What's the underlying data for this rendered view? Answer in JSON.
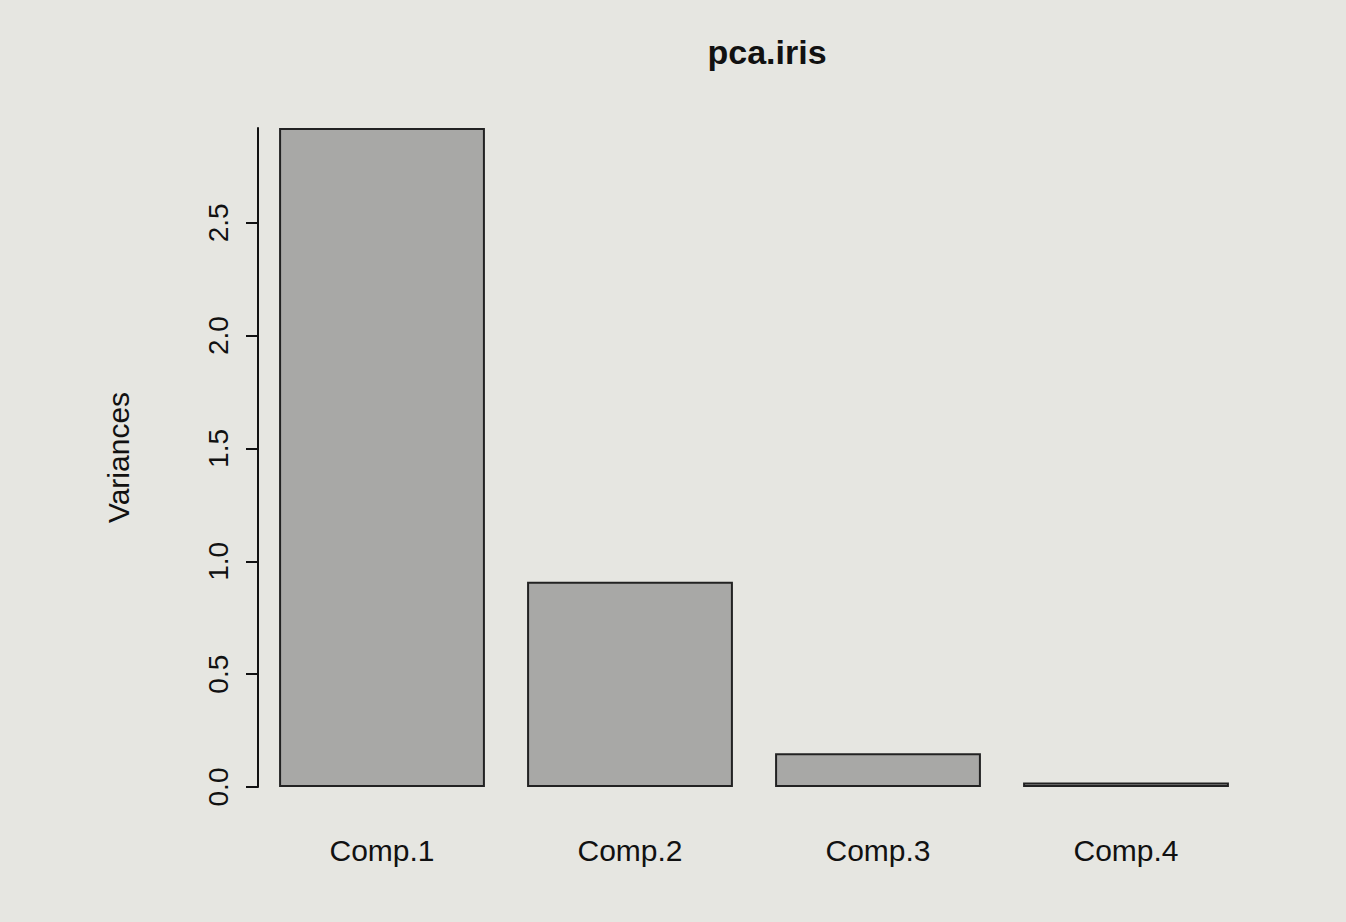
{
  "chart_data": {
    "type": "bar",
    "title": "pca.iris",
    "categories": [
      "Comp.1",
      "Comp.2",
      "Comp.3",
      "Comp.4"
    ],
    "values": [
      2.92,
      0.91,
      0.15,
      0.02
    ],
    "color": "#a8a8a6",
    "y_label": "Variances",
    "ylim": [
      0,
      2.92
    ],
    "yticks": [
      {
        "value": 0,
        "label": "0.0"
      },
      {
        "value": 0.5,
        "label": "0.5"
      },
      {
        "value": 1,
        "label": "1.0"
      },
      {
        "value": 1.5,
        "label": "1.5"
      },
      {
        "value": 2,
        "label": "2.0"
      },
      {
        "value": 2.5,
        "label": "2.5"
      }
    ],
    "grid": false
  }
}
